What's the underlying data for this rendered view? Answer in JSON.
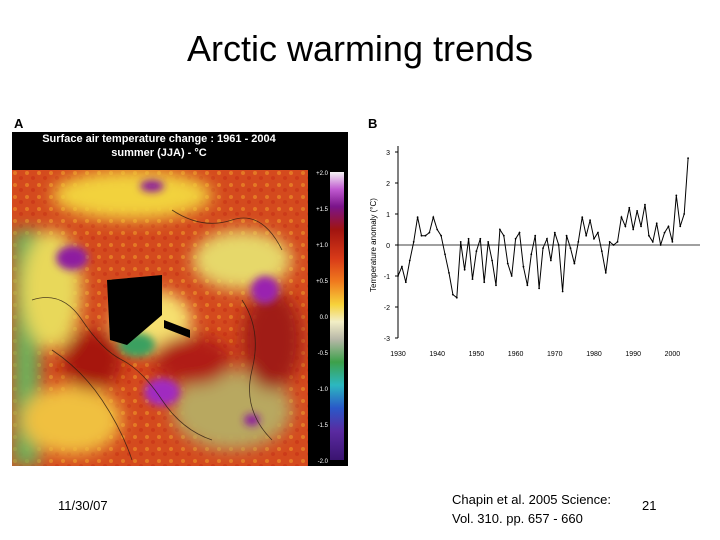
{
  "slide": {
    "title": "Arctic warming trends",
    "date": "11/30/07",
    "citation_line1": "Chapin et al. 2005 Science:",
    "citation_line2": "Vol. 310. pp. 657 - 660",
    "page_number": "21"
  },
  "panel_a": {
    "letter": "A",
    "title_line1": "Surface air temperature change : 1961 - 2004",
    "title_line2": "summer (JJA) - °C",
    "colorbar_ticks": [
      "+2.0",
      "+1.5",
      "+1.0",
      "+0.5",
      "0.0",
      "-0.5",
      "-1.0",
      "-1.5",
      "-2.0"
    ]
  },
  "chart_data": {
    "type": "line",
    "panel_letter": "B",
    "ylabel": "Temperature anomaly (°C)",
    "xlabel": "",
    "xlim": [
      1930,
      2005
    ],
    "ylim": [
      -3,
      3
    ],
    "x_ticks": [
      1930,
      1940,
      1950,
      1960,
      1970,
      1980,
      1990,
      2000
    ],
    "y_ticks": [
      3,
      2,
      1,
      0,
      -1,
      -2,
      -3
    ],
    "zero_line": true,
    "series": [
      {
        "color": "#000000",
        "x": [
          1930,
          1931,
          1932,
          1933,
          1934,
          1935,
          1936,
          1937,
          1938,
          1939,
          1940,
          1941,
          1942,
          1943,
          1944,
          1945,
          1946,
          1947,
          1948,
          1949,
          1950,
          1951,
          1952,
          1953,
          1954,
          1955,
          1956,
          1957,
          1958,
          1959,
          1960,
          1961,
          1962,
          1963,
          1964,
          1965,
          1966,
          1967,
          1968,
          1969,
          1970,
          1971,
          1972,
          1973,
          1974,
          1975,
          1976,
          1977,
          1978,
          1979,
          1980,
          1981,
          1982,
          1983,
          1984,
          1985,
          1986,
          1987,
          1988,
          1989,
          1990,
          1991,
          1992,
          1993,
          1994,
          1995,
          1996,
          1997,
          1998,
          1999,
          2000,
          2001,
          2002,
          2003,
          2004
        ],
        "y": [
          -1.0,
          -0.7,
          -1.2,
          -0.5,
          0.1,
          0.9,
          0.3,
          0.3,
          0.4,
          0.9,
          0.5,
          0.3,
          -0.3,
          -0.9,
          -1.6,
          -1.7,
          0.1,
          -0.8,
          0.2,
          -1.1,
          -0.2,
          0.2,
          -1.2,
          0.1,
          -0.5,
          -1.3,
          0.5,
          0.3,
          -0.6,
          -1.0,
          0.2,
          0.4,
          -0.7,
          -1.3,
          -0.3,
          0.3,
          -1.4,
          -0.1,
          0.2,
          -0.5,
          0.4,
          0.0,
          -1.5,
          0.3,
          -0.1,
          -0.6,
          0.1,
          0.9,
          0.3,
          0.8,
          0.2,
          0.4,
          -0.2,
          -0.9,
          0.1,
          0.0,
          0.1,
          0.9,
          0.6,
          1.2,
          0.5,
          1.1,
          0.6,
          1.3,
          0.3,
          0.1,
          0.7,
          0.0,
          0.4,
          0.6,
          0.1,
          1.6,
          0.6,
          1.0,
          2.8
        ]
      }
    ]
  }
}
